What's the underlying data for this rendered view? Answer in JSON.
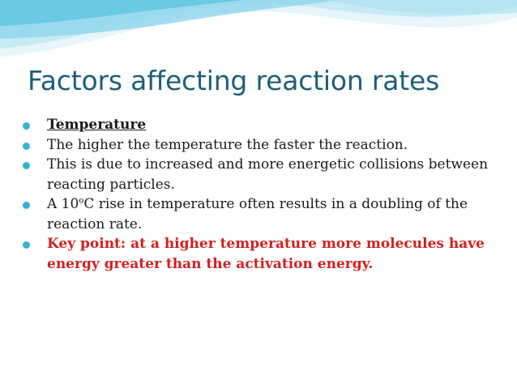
{
  "slide": {
    "title": "Factors affecting reaction rates",
    "bullets": [
      {
        "text": "Temperature",
        "style": "bold-underline"
      },
      {
        "text": "The higher the temperature the faster the reaction.",
        "style": "normal"
      },
      {
        "text": "This is due to increased and more energetic collisions between reacting particles.",
        "style": "normal"
      },
      {
        "pre": "A 10",
        "sup": "o",
        "post": "C rise in temperature often results in a doubling of the reaction rate.",
        "style": "normal"
      },
      {
        "text": "Key point: at a higher temperature more molecules have energy greater than the activation energy.",
        "style": "bold-red"
      }
    ]
  },
  "colors": {
    "title": "#1d5f78",
    "bullet_marker": "#35b0d6",
    "body_text": "#1a1a1a",
    "key_point": "#d2201f",
    "wave_light": "#c7ebf5",
    "wave_dark": "#5ac3e2"
  }
}
